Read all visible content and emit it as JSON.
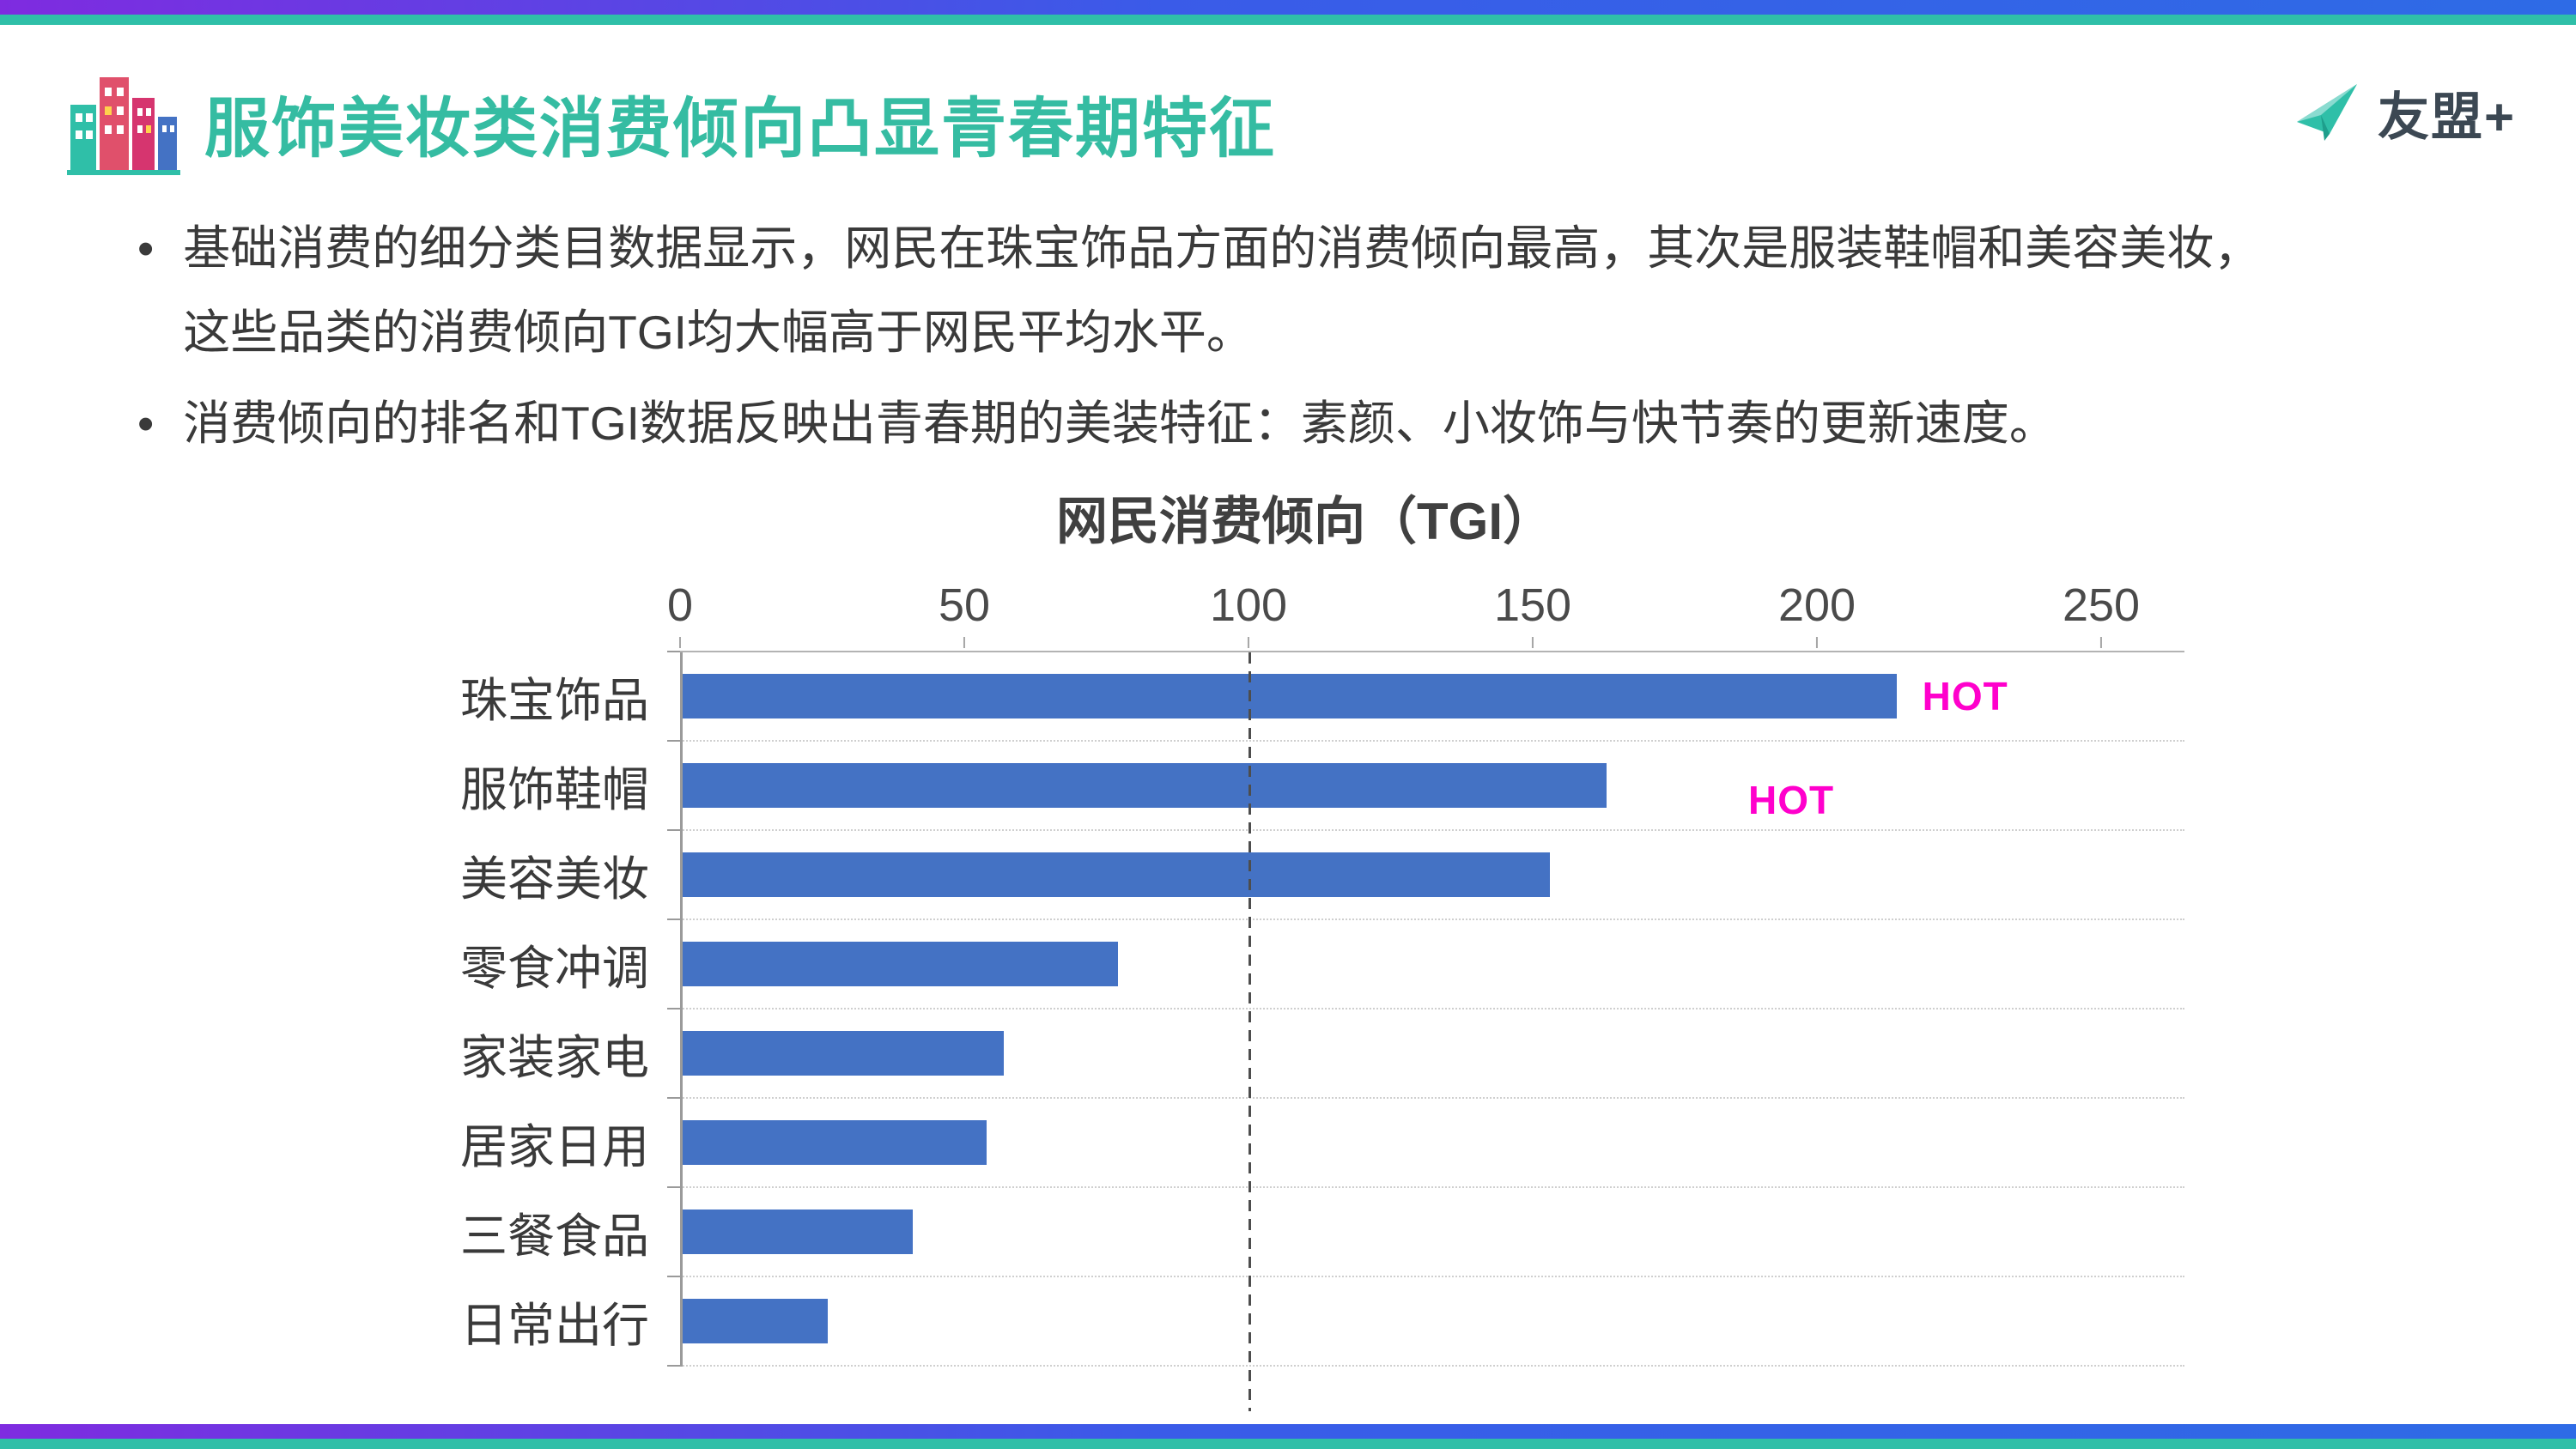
{
  "slide": {
    "title": "服饰美妆类消费倾向凸显青春期特征",
    "logo_text": "友盟+",
    "bullets": [
      "基础消费的细分类目数据显示，网民在珠宝饰品方面的消费倾向最高，其次是服装鞋帽和美容美妆，这些品类的消费倾向TGI均大幅高于网民平均水平。",
      "消费倾向的排名和TGI数据反映出青春期的美装特征：素颜、小妆饰与快节奏的更新速度。"
    ],
    "bullet_marker": "•"
  },
  "chart_data": {
    "type": "bar",
    "orientation": "horizontal",
    "title": "网民消费倾向（TGI）",
    "categories": [
      "珠宝饰品",
      "服饰鞋帽",
      "美容美妆",
      "零食冲调",
      "家装家电",
      "居家日用",
      "三餐食品",
      "日常出行"
    ],
    "values": [
      214,
      163,
      153,
      77,
      57,
      54,
      41,
      26
    ],
    "hot_flags": [
      true,
      true,
      false,
      false,
      false,
      false,
      false,
      false
    ],
    "hot_label": "HOT",
    "xlim": [
      0,
      250
    ],
    "x_ticks": [
      0,
      50,
      100,
      150,
      200,
      250
    ],
    "reference_line": 100,
    "axis_position": "top",
    "legend": "none",
    "grid": "dotted-row-separators",
    "bar_color": "#4472C4",
    "hot_color": "#FF00CC",
    "reference_line_color": "#4D4D4D"
  },
  "colors": {
    "accent_teal": "#2FBFA8",
    "title_teal": "#35BCA2",
    "edge_gradient_from": "#7F2BE0",
    "edge_gradient_to": "#2E6BE6",
    "body_text": "#3A3A3A"
  }
}
